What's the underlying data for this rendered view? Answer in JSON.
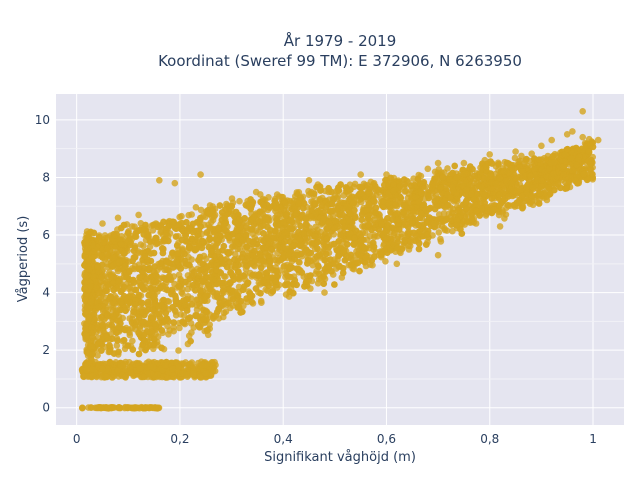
{
  "chart_data": {
    "type": "scatter",
    "title_line1": "År 1979 - 2019",
    "title_line2": "Koordinat (Sweref 99 TM): E 372906, N 6263950",
    "xlabel": "Signifikant våghöjd (m)",
    "ylabel": "Vågperiod (s)",
    "xlim": [
      -0.04,
      1.06
    ],
    "ylim": [
      -0.6,
      10.9
    ],
    "x_ticks": [
      0,
      0.2,
      0.4,
      0.6,
      0.8,
      1
    ],
    "x_tick_labels": [
      "0",
      "0,2",
      "0,4",
      "0,6",
      "0,8",
      "1"
    ],
    "y_ticks": [
      0,
      2,
      4,
      6,
      8,
      10
    ],
    "y_tick_labels": [
      "0",
      "2",
      "4",
      "6",
      "8",
      "10"
    ],
    "grid": true,
    "marker_color": "#D4A520",
    "background_color": "#E5E5F0",
    "series": [
      {
        "values_sample": [
          {
            "x": 0.01,
            "y": 0.0
          },
          {
            "x": 0.05,
            "y": 0.0
          },
          {
            "x": 0.1,
            "y": 0.0
          },
          {
            "x": 0.15,
            "y": 0.0
          },
          {
            "x": 0.02,
            "y": 1.5
          },
          {
            "x": 0.05,
            "y": 1.2
          },
          {
            "x": 0.1,
            "y": 1.1
          },
          {
            "x": 0.2,
            "y": 1.2
          },
          {
            "x": 0.03,
            "y": 5.8
          },
          {
            "x": 0.1,
            "y": 6.5
          },
          {
            "x": 0.2,
            "y": 7.8
          },
          {
            "x": 0.3,
            "y": 3.5
          },
          {
            "x": 0.3,
            "y": 6.5
          },
          {
            "x": 0.4,
            "y": 4.0
          },
          {
            "x": 0.4,
            "y": 7.2
          },
          {
            "x": 0.5,
            "y": 4.0
          },
          {
            "x": 0.5,
            "y": 7.5
          },
          {
            "x": 0.6,
            "y": 5.0
          },
          {
            "x": 0.6,
            "y": 7.8
          },
          {
            "x": 0.7,
            "y": 5.5
          },
          {
            "x": 0.7,
            "y": 8.5
          },
          {
            "x": 0.8,
            "y": 6.0
          },
          {
            "x": 0.8,
            "y": 8.8
          },
          {
            "x": 0.9,
            "y": 7.0
          },
          {
            "x": 0.9,
            "y": 9.3
          },
          {
            "x": 0.98,
            "y": 10.3
          },
          {
            "x": 1.01,
            "y": 9.4
          }
        ]
      }
    ]
  }
}
